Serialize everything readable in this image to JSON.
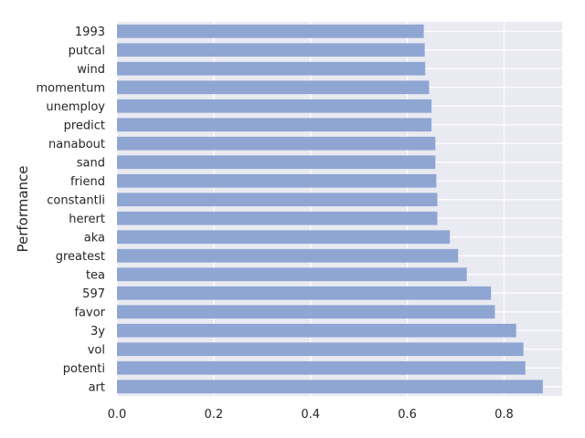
{
  "chart_data": {
    "type": "bar",
    "orientation": "horizontal",
    "title": "",
    "xlabel": "",
    "ylabel": "Performance",
    "categories": [
      "art",
      "potenti",
      "vol",
      "3y",
      "favor",
      "597",
      "tea",
      "greatest",
      "aka",
      "herert",
      "constantli",
      "friend",
      "sand",
      "nanabout",
      "predict",
      "unemploy",
      "momentum",
      "wind",
      "putcal",
      "1993"
    ],
    "values": [
      0.88,
      0.844,
      0.84,
      0.825,
      0.781,
      0.773,
      0.723,
      0.705,
      0.688,
      0.662,
      0.662,
      0.66,
      0.658,
      0.658,
      0.65,
      0.65,
      0.645,
      0.637,
      0.636,
      0.634
    ],
    "xlim": [
      0,
      0.92
    ],
    "xticks": [
      0.0,
      0.2,
      0.4,
      0.6,
      0.8
    ],
    "xtick_labels": [
      "0.0",
      "0.2",
      "0.4",
      "0.6",
      "0.8"
    ],
    "grid": true,
    "bar_color": "#8fa6d3",
    "background_color": "#eaeaf2",
    "grid_color": "#ffffff"
  }
}
